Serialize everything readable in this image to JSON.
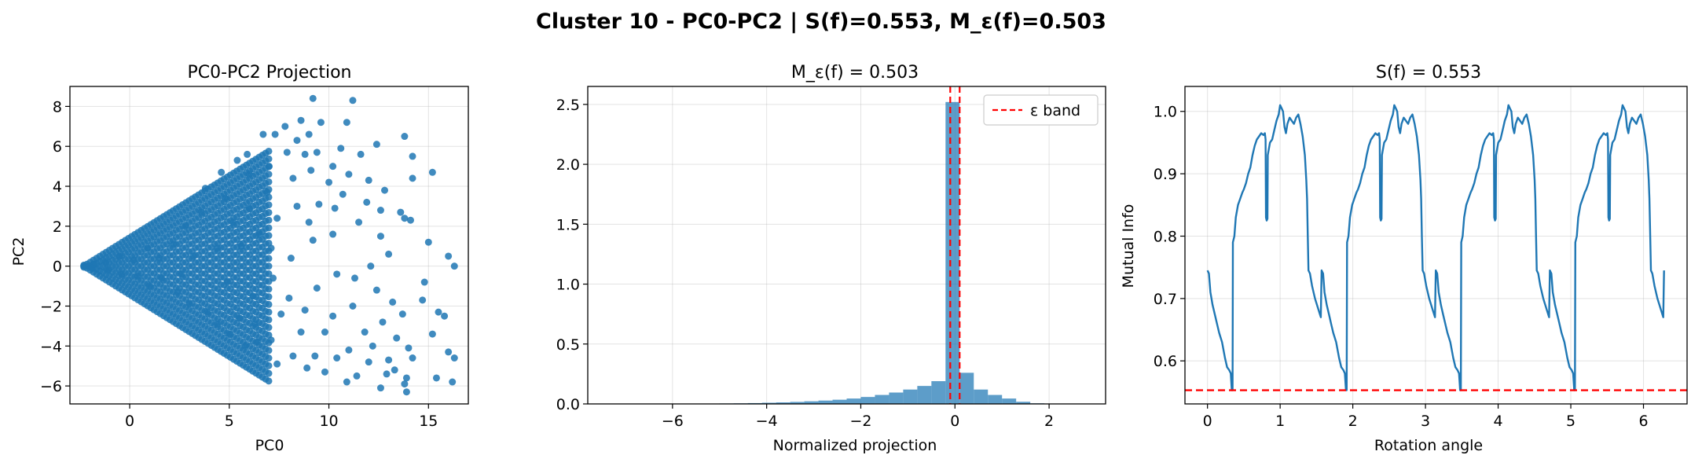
{
  "suptitle": "Cluster 10 - PC0-PC2 | S(f)=0.553, M_ε(f)=0.503",
  "colors": {
    "series": "#1f77b4",
    "threshold": "#ff0000",
    "grid": "#b0b0b0"
  },
  "chart_data": [
    {
      "type": "scatter",
      "title": "PC0-PC2 Projection",
      "xlabel": "PC0",
      "ylabel": "PC2",
      "xlim": [
        -3.0,
        17.0
      ],
      "ylim": [
        -6.9,
        9.0
      ],
      "xticks": [
        0,
        5,
        10,
        15
      ],
      "yticks": [
        -6,
        -4,
        -2,
        0,
        2,
        4,
        6,
        8
      ],
      "grid": true,
      "point_description": "dense wedge of points fanning right from origin near (-2,0); sparse outliers up to x≈16",
      "points": [
        [
          9.2,
          8.4
        ],
        [
          11.2,
          8.3
        ],
        [
          7.8,
          7.0
        ],
        [
          8.6,
          7.3
        ],
        [
          9.6,
          7.2
        ],
        [
          10.9,
          7.2
        ],
        [
          6.7,
          6.6
        ],
        [
          7.3,
          6.6
        ],
        [
          8.4,
          6.3
        ],
        [
          9.0,
          6.6
        ],
        [
          12.4,
          6.1
        ],
        [
          13.8,
          6.5
        ],
        [
          7.9,
          5.7
        ],
        [
          8.8,
          5.6
        ],
        [
          9.4,
          5.7
        ],
        [
          10.6,
          5.9
        ],
        [
          11.6,
          5.6
        ],
        [
          14.2,
          5.5
        ],
        [
          15.2,
          4.7
        ],
        [
          10.2,
          5.0
        ],
        [
          11.0,
          4.6
        ],
        [
          12.0,
          4.3
        ],
        [
          12.8,
          3.8
        ],
        [
          8.2,
          4.4
        ],
        [
          9.1,
          4.8
        ],
        [
          10.7,
          3.6
        ],
        [
          11.9,
          3.2
        ],
        [
          13.6,
          2.7
        ],
        [
          13.8,
          2.4
        ],
        [
          14.1,
          2.3
        ],
        [
          9.5,
          3.1
        ],
        [
          10.3,
          2.9
        ],
        [
          11.5,
          2.2
        ],
        [
          12.6,
          1.5
        ],
        [
          13.0,
          0.6
        ],
        [
          16.0,
          0.5
        ],
        [
          16.3,
          0.0
        ],
        [
          12.1,
          0.0
        ],
        [
          11.3,
          -0.6
        ],
        [
          12.4,
          -1.2
        ],
        [
          13.2,
          -1.8
        ],
        [
          14.7,
          -1.7
        ],
        [
          15.5,
          -2.3
        ],
        [
          13.7,
          -2.4
        ],
        [
          12.7,
          -2.8
        ],
        [
          11.2,
          -2.0
        ],
        [
          10.2,
          -2.5
        ],
        [
          11.8,
          -3.3
        ],
        [
          13.4,
          -3.6
        ],
        [
          15.8,
          -2.5
        ],
        [
          15.2,
          -3.4
        ],
        [
          14.0,
          -4.1
        ],
        [
          12.2,
          -4.0
        ],
        [
          11.0,
          -4.2
        ],
        [
          16.0,
          -4.3
        ],
        [
          16.3,
          -4.6
        ],
        [
          14.2,
          -4.6
        ],
        [
          13.0,
          -4.7
        ],
        [
          12.0,
          -4.8
        ],
        [
          10.4,
          -4.6
        ],
        [
          9.3,
          -4.5
        ],
        [
          8.2,
          -4.5
        ],
        [
          7.4,
          -4.9
        ],
        [
          12.9,
          -5.4
        ],
        [
          13.3,
          -5.2
        ],
        [
          13.9,
          -5.6
        ],
        [
          15.4,
          -5.6
        ],
        [
          16.2,
          -5.8
        ],
        [
          12.6,
          -6.1
        ],
        [
          13.8,
          -5.9
        ],
        [
          13.9,
          -6.3
        ],
        [
          10.9,
          -5.8
        ],
        [
          9.8,
          -5.3
        ],
        [
          8.9,
          -5.1
        ],
        [
          11.4,
          -5.5
        ],
        [
          6.4,
          -3.8
        ],
        [
          7.1,
          -3.7
        ],
        [
          8.6,
          -3.3
        ],
        [
          9.8,
          -3.3
        ],
        [
          6.3,
          -2.9
        ],
        [
          7.6,
          -2.4
        ],
        [
          8.8,
          -2.2
        ],
        [
          9.4,
          -1.1
        ],
        [
          10.4,
          -0.4
        ],
        [
          8.1,
          0.4
        ],
        [
          9.2,
          1.3
        ],
        [
          10.2,
          1.6
        ],
        [
          7.4,
          2.4
        ],
        [
          8.4,
          3.0
        ],
        [
          6.9,
          3.7
        ],
        [
          6.0,
          4.6
        ],
        [
          7.0,
          5.0
        ],
        [
          5.4,
          5.3
        ],
        [
          5.9,
          5.6
        ],
        [
          4.6,
          4.7
        ],
        [
          3.8,
          3.9
        ],
        [
          6.5,
          1.6
        ],
        [
          7.1,
          0.9
        ],
        [
          6.2,
          -1.5
        ],
        [
          5.5,
          -2.6
        ],
        [
          4.4,
          -2.9
        ],
        [
          5.0,
          -3.4
        ],
        [
          5.8,
          -4.0
        ],
        [
          4.8,
          3.4
        ],
        [
          5.2,
          2.2
        ],
        [
          5.6,
          1.0
        ],
        [
          4.9,
          -0.8
        ],
        [
          3.6,
          2.7
        ],
        [
          3.9,
          -2.3
        ],
        [
          2.8,
          2.0
        ],
        [
          3.0,
          -1.9
        ],
        [
          2.2,
          1.1
        ],
        [
          2.4,
          -1.3
        ],
        [
          1.5,
          0.4
        ],
        [
          1.6,
          -0.6
        ],
        [
          0.9,
          0.9
        ],
        [
          1.0,
          -1.0
        ],
        [
          0.2,
          0.3
        ],
        [
          0.4,
          -0.5
        ],
        [
          -0.5,
          0.5
        ],
        [
          -0.4,
          -0.4
        ],
        [
          -1.2,
          0.2
        ],
        [
          -1.1,
          -0.2
        ],
        [
          -1.8,
          0.1
        ],
        [
          -1.9,
          -0.1
        ],
        [
          -2.3,
          0.0
        ],
        [
          12.6,
          2.8
        ],
        [
          14.2,
          4.4
        ],
        [
          15.0,
          1.2
        ],
        [
          14.8,
          -0.8
        ],
        [
          10.0,
          4.2
        ],
        [
          9.0,
          2.2
        ],
        [
          8.0,
          -1.6
        ],
        [
          7.2,
          -0.6
        ],
        [
          6.0,
          2.9
        ],
        [
          4.4,
          0.9
        ],
        [
          3.2,
          0.5
        ],
        [
          2.6,
          -0.4
        ]
      ]
    },
    {
      "type": "bar",
      "title": "M_ε(f) = 0.503",
      "xlabel": "Normalized projection",
      "ylabel": "",
      "xlim": [
        -7.8,
        3.2
      ],
      "ylim": [
        0,
        2.65
      ],
      "xticks": [
        -6,
        -4,
        -2,
        0,
        2
      ],
      "yticks": [
        0.0,
        0.5,
        1.0,
        1.5,
        2.0,
        2.5
      ],
      "grid": true,
      "bin_width": 0.3,
      "bins": [
        {
          "x0": -7.4,
          "value": 0.001
        },
        {
          "x0": -7.1,
          "value": 0.001
        },
        {
          "x0": -6.8,
          "value": 0.001
        },
        {
          "x0": -6.5,
          "value": 0.001
        },
        {
          "x0": -6.2,
          "value": 0.002
        },
        {
          "x0": -5.9,
          "value": 0.002
        },
        {
          "x0": -5.6,
          "value": 0.002
        },
        {
          "x0": -5.3,
          "value": 0.003
        },
        {
          "x0": -5.0,
          "value": 0.004
        },
        {
          "x0": -4.7,
          "value": 0.005
        },
        {
          "x0": -4.4,
          "value": 0.007
        },
        {
          "x0": -4.1,
          "value": 0.01
        },
        {
          "x0": -3.8,
          "value": 0.013
        },
        {
          "x0": -3.5,
          "value": 0.017
        },
        {
          "x0": -3.2,
          "value": 0.022
        },
        {
          "x0": -2.9,
          "value": 0.028
        },
        {
          "x0": -2.6,
          "value": 0.035
        },
        {
          "x0": -2.3,
          "value": 0.045
        },
        {
          "x0": -2.0,
          "value": 0.058
        },
        {
          "x0": -1.7,
          "value": 0.075
        },
        {
          "x0": -1.4,
          "value": 0.095
        },
        {
          "x0": -1.1,
          "value": 0.12
        },
        {
          "x0": -0.8,
          "value": 0.15
        },
        {
          "x0": -0.5,
          "value": 0.19
        },
        {
          "x0": -0.2,
          "value": 2.52
        },
        {
          "x0": 0.1,
          "value": 0.26
        },
        {
          "x0": 0.4,
          "value": 0.12
        },
        {
          "x0": 0.7,
          "value": 0.075
        },
        {
          "x0": 1.0,
          "value": 0.045
        },
        {
          "x0": 1.3,
          "value": 0.018
        },
        {
          "x0": 1.6,
          "value": 0.005
        },
        {
          "x0": 1.9,
          "value": 0.002
        }
      ],
      "vlines": [
        -0.1,
        0.1
      ],
      "legend": {
        "label": "ε band",
        "placement": "top-right"
      }
    },
    {
      "type": "line",
      "title": "S(f) = 0.553",
      "xlabel": "Rotation angle",
      "ylabel": "Mutual Info",
      "xlim": [
        -0.31,
        6.6
      ],
      "ylim": [
        0.531,
        1.04
      ],
      "xticks": [
        0,
        1,
        2,
        3,
        4,
        5,
        6
      ],
      "yticks": [
        0.6,
        0.7,
        0.8,
        0.9,
        1.0
      ],
      "grid": true,
      "hline": 0.553,
      "period": 1.5708,
      "segment": [
        [
          0.0,
          0.745
        ],
        [
          0.02,
          0.74
        ],
        [
          0.04,
          0.71
        ],
        [
          0.07,
          0.69
        ],
        [
          0.1,
          0.675
        ],
        [
          0.13,
          0.66
        ],
        [
          0.16,
          0.645
        ],
        [
          0.2,
          0.63
        ],
        [
          0.24,
          0.605
        ],
        [
          0.27,
          0.59
        ],
        [
          0.3,
          0.585
        ],
        [
          0.32,
          0.58
        ],
        [
          0.335,
          0.553
        ],
        [
          0.345,
          0.553
        ],
        [
          0.35,
          0.79
        ],
        [
          0.37,
          0.8
        ],
        [
          0.39,
          0.83
        ],
        [
          0.42,
          0.85
        ],
        [
          0.45,
          0.86
        ],
        [
          0.48,
          0.87
        ],
        [
          0.5,
          0.875
        ],
        [
          0.53,
          0.885
        ],
        [
          0.56,
          0.9
        ],
        [
          0.59,
          0.91
        ],
        [
          0.62,
          0.93
        ],
        [
          0.65,
          0.945
        ],
        [
          0.68,
          0.955
        ],
        [
          0.71,
          0.96
        ],
        [
          0.74,
          0.965
        ],
        [
          0.77,
          0.962
        ],
        [
          0.79,
          0.965
        ],
        [
          0.8,
          0.955
        ],
        [
          0.805,
          0.83
        ],
        [
          0.815,
          0.825
        ],
        [
          0.825,
          0.828
        ],
        [
          0.83,
          0.93
        ],
        [
          0.86,
          0.95
        ],
        [
          0.89,
          0.955
        ],
        [
          0.92,
          0.97
        ],
        [
          0.95,
          0.985
        ],
        [
          0.98,
          0.995
        ],
        [
          1.0,
          1.01
        ],
        [
          1.02,
          1.005
        ],
        [
          1.04,
          1.0
        ],
        [
          1.06,
          0.975
        ],
        [
          1.08,
          0.965
        ],
        [
          1.1,
          0.98
        ],
        [
          1.13,
          0.99
        ],
        [
          1.16,
          0.985
        ],
        [
          1.19,
          0.98
        ],
        [
          1.22,
          0.99
        ],
        [
          1.25,
          0.995
        ],
        [
          1.28,
          0.98
        ],
        [
          1.31,
          0.96
        ],
        [
          1.34,
          0.93
        ],
        [
          1.36,
          0.89
        ],
        [
          1.37,
          0.86
        ],
        [
          1.38,
          0.8
        ],
        [
          1.39,
          0.745
        ],
        [
          1.41,
          0.74
        ],
        [
          1.44,
          0.72
        ],
        [
          1.48,
          0.7
        ],
        [
          1.52,
          0.685
        ],
        [
          1.56,
          0.67
        ],
        [
          1.5708,
          0.745
        ]
      ]
    }
  ]
}
